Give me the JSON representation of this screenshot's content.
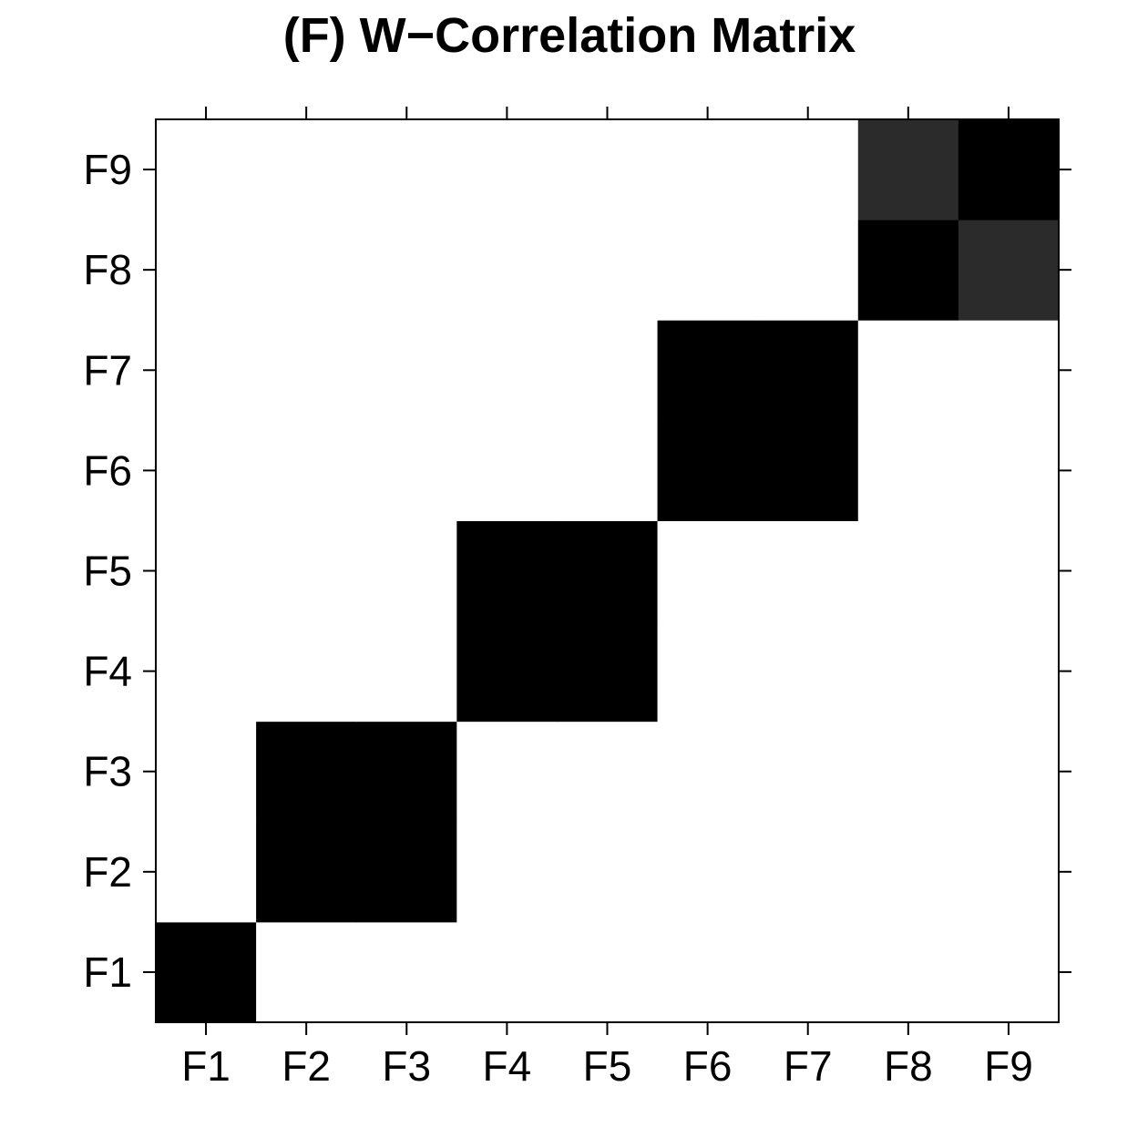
{
  "chart_data": {
    "type": "heatmap",
    "title": "(F) W−Correlation Matrix",
    "xlabel": "",
    "ylabel": "",
    "x_categories": [
      "F1",
      "F2",
      "F3",
      "F4",
      "F5",
      "F6",
      "F7",
      "F8",
      "F9"
    ],
    "y_categories": [
      "F1",
      "F2",
      "F3",
      "F4",
      "F5",
      "F6",
      "F7",
      "F8",
      "F9"
    ],
    "color_scale": {
      "low": "#ffffff",
      "high": "#000000"
    },
    "values": [
      [
        1.0,
        0.0,
        0.0,
        0.0,
        0.0,
        0.0,
        0.0,
        0.0,
        0.0
      ],
      [
        0.0,
        1.0,
        1.0,
        0.0,
        0.0,
        0.0,
        0.0,
        0.0,
        0.0
      ],
      [
        0.0,
        1.0,
        1.0,
        0.0,
        0.0,
        0.0,
        0.0,
        0.0,
        0.0
      ],
      [
        0.0,
        0.0,
        0.0,
        1.0,
        1.0,
        0.0,
        0.0,
        0.0,
        0.0
      ],
      [
        0.0,
        0.0,
        0.0,
        1.0,
        1.0,
        0.0,
        0.0,
        0.0,
        0.0
      ],
      [
        0.0,
        0.0,
        0.0,
        0.0,
        0.0,
        1.0,
        1.0,
        0.0,
        0.0
      ],
      [
        0.0,
        0.0,
        0.0,
        0.0,
        0.0,
        1.0,
        1.0,
        0.0,
        0.0
      ],
      [
        0.0,
        0.0,
        0.0,
        0.0,
        0.0,
        0.0,
        0.0,
        1.0,
        0.83
      ],
      [
        0.0,
        0.0,
        0.0,
        0.0,
        0.0,
        0.0,
        0.0,
        0.83,
        1.0
      ]
    ],
    "grid": false,
    "legend": "none"
  }
}
